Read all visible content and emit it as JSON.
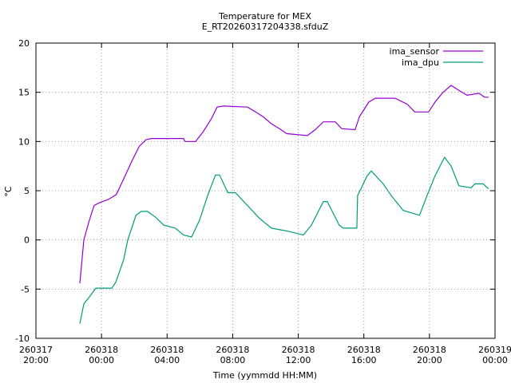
{
  "chart_data": {
    "type": "line",
    "title": "Temperature for MEX",
    "subtitle": "E_RT20260317204338.sfduZ",
    "xlabel": "Time (yymmdd HH:MM)",
    "ylabel": "°C",
    "xlim": [
      0,
      28
    ],
    "xticks": [
      {
        "value": 0,
        "label": "260317\n20:00"
      },
      {
        "value": 4,
        "label": "260318\n00:00"
      },
      {
        "value": 8,
        "label": "260318\n04:00"
      },
      {
        "value": 12,
        "label": "260318\n08:00"
      },
      {
        "value": 16,
        "label": "260318\n12:00"
      },
      {
        "value": 20,
        "label": "260318\n16:00"
      },
      {
        "value": 24,
        "label": "260318\n20:00"
      },
      {
        "value": 28,
        "label": "260319\n00:00"
      }
    ],
    "ylim": [
      -10,
      20
    ],
    "yticks": [
      -10,
      -5,
      0,
      5,
      10,
      15,
      20
    ],
    "grid": true,
    "legend": "top-right",
    "series": [
      {
        "name": "ima_sensor",
        "color": "#9400d3",
        "x": [
          2.68,
          2.92,
          3.26,
          3.55,
          3.9,
          4.4,
          4.9,
          5.35,
          5.85,
          6.3,
          6.72,
          7.06,
          9.0,
          9.1,
          9.74,
          10.2,
          10.7,
          11.05,
          11.44,
          12.9,
          13.4,
          13.87,
          14.36,
          14.85,
          15.3,
          16.55,
          17.04,
          17.53,
          18.26,
          18.65,
          19.47,
          19.72,
          20.3,
          20.69,
          21.9,
          22.64,
          23.1,
          23.95,
          24.34,
          24.83,
          25.32,
          25.8,
          26.29,
          27.02,
          27.36,
          27.6
        ],
        "values": [
          -4.4,
          0,
          2,
          3.5,
          3.8,
          4.1,
          4.6,
          6.2,
          8,
          9.5,
          10.2,
          10.3,
          10.3,
          10,
          10,
          11,
          12.3,
          13.5,
          13.6,
          13.5,
          13,
          12.5,
          11.8,
          11.3,
          10.8,
          10.6,
          11.2,
          12,
          12,
          11.3,
          11.2,
          12.5,
          14,
          14.4,
          14.4,
          13.8,
          13,
          13,
          14,
          15,
          15.7,
          15.2,
          14.7,
          14.9,
          14.5,
          14.5
        ]
      },
      {
        "name": "ima_dpu",
        "color": "#009e73",
        "x": [
          2.68,
          2.92,
          3.26,
          3.65,
          4.63,
          4.87,
          5.35,
          5.6,
          6.1,
          6.43,
          6.8,
          7.3,
          7.8,
          8.5,
          9.0,
          9.49,
          9.98,
          10.47,
          10.95,
          11.2,
          11.7,
          12.17,
          12.9,
          13.63,
          14.36,
          15.33,
          16.31,
          16.8,
          17.53,
          17.77,
          18.5,
          18.74,
          19.57,
          19.62,
          20.2,
          20.45,
          21.18,
          21.67,
          22.4,
          23.4,
          23.85,
          24.34,
          24.92,
          25.32,
          25.8,
          26.54,
          26.78,
          27.27,
          27.6
        ],
        "values": [
          -8.5,
          -6.5,
          -5.8,
          -4.9,
          -4.9,
          -4.3,
          -2,
          0,
          2.5,
          2.9,
          2.9,
          2.3,
          1.5,
          1.2,
          0.5,
          0.3,
          2,
          4.5,
          6.6,
          6.6,
          4.8,
          4.8,
          3.5,
          2.2,
          1.2,
          0.9,
          0.5,
          1.5,
          3.9,
          3.9,
          1.5,
          1.2,
          1.2,
          4.5,
          6.5,
          7,
          5.7,
          4.5,
          3,
          2.5,
          4.5,
          6.5,
          8.4,
          7.5,
          5.5,
          5.3,
          5.7,
          5.7,
          5.2
        ]
      }
    ]
  }
}
